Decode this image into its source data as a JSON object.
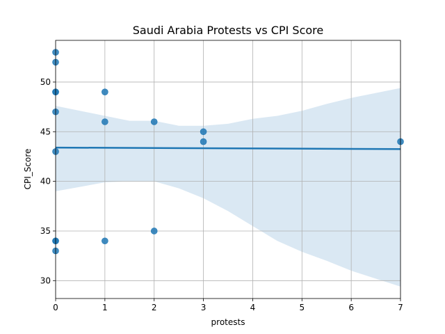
{
  "chart_data": {
    "type": "scatter",
    "title": "Saudi Arabia Protests vs CPI Score",
    "xlabel": "protests",
    "ylabel": "CPI_Score",
    "xlim": [
      0,
      7
    ],
    "ylim": [
      28.2,
      54.2
    ],
    "xticks": [
      "0",
      "1",
      "2",
      "3",
      "4",
      "5",
      "6",
      "7"
    ],
    "yticks": [
      "30",
      "35",
      "40",
      "45",
      "50"
    ],
    "grid": true,
    "points": [
      {
        "x": 0,
        "y": 53
      },
      {
        "x": 0,
        "y": 52
      },
      {
        "x": 0,
        "y": 49
      },
      {
        "x": 0,
        "y": 49
      },
      {
        "x": 0,
        "y": 47
      },
      {
        "x": 0,
        "y": 43
      },
      {
        "x": 0,
        "y": 34
      },
      {
        "x": 0,
        "y": 34
      },
      {
        "x": 0,
        "y": 33
      },
      {
        "x": 1,
        "y": 49
      },
      {
        "x": 1,
        "y": 46
      },
      {
        "x": 1,
        "y": 34
      },
      {
        "x": 2,
        "y": 46
      },
      {
        "x": 2,
        "y": 35
      },
      {
        "x": 3,
        "y": 45
      },
      {
        "x": 3,
        "y": 44
      },
      {
        "x": 7,
        "y": 44
      }
    ],
    "regression_line": {
      "x": [
        0,
        7
      ],
      "y": [
        43.4,
        43.25
      ]
    },
    "confidence_band": {
      "x": [
        0,
        1,
        1.5,
        2,
        2.5,
        3,
        3.5,
        4,
        4.5,
        5,
        5.5,
        6,
        6.5,
        7
      ],
      "upper": [
        47.6,
        46.6,
        46.1,
        46.1,
        45.6,
        45.6,
        45.8,
        46.3,
        46.6,
        47.1,
        47.8,
        48.4,
        48.9,
        49.4
      ],
      "lower": [
        39.0,
        39.9,
        40.0,
        40.0,
        39.3,
        38.3,
        37.0,
        35.5,
        34.0,
        32.9,
        32.0,
        31.0,
        30.2,
        29.4
      ]
    },
    "colors": {
      "points": "#1f77b4",
      "line": "#1f77b4",
      "band": "#c6dbed"
    }
  }
}
